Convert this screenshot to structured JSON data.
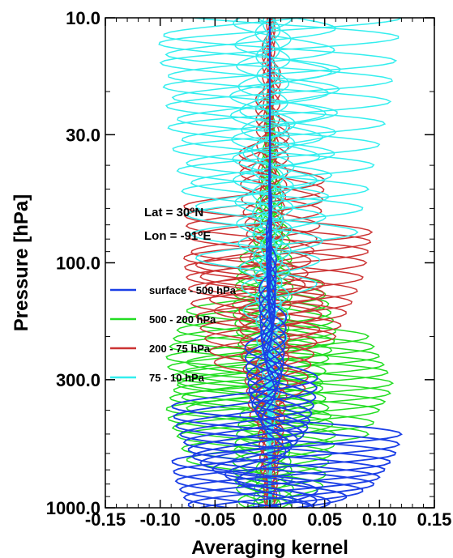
{
  "chart_data": {
    "type": "line",
    "xlabel": "Averaging kernel",
    "ylabel": "Pressure [hPa]",
    "xlim": [
      -0.15,
      0.15
    ],
    "ylim": [
      1000.0,
      10.0
    ],
    "y_scale": "log",
    "x_ticks": [
      "-0.15",
      "-0.10",
      "-0.05",
      "0.00",
      "0.05",
      "0.10",
      "0.15"
    ],
    "y_ticks": [
      "10.0",
      "30.0",
      "100.0",
      "300.0",
      "1000.0"
    ],
    "y_tick_values": [
      10,
      30,
      100,
      300,
      1000
    ],
    "grid": false,
    "annotations": [
      {
        "text_html": "Lat = 30<tspan baseline-shift='super' font-size='10'>o</tspan>N",
        "text": "Lat = 30oN"
      },
      {
        "text_html": "Lon = -91<tspan baseline-shift='super' font-size='10'>o</tspan>E",
        "text": "Lon = -91oE"
      }
    ],
    "legend_position": "center-left",
    "series": [
      {
        "name": "surface - 500 hPa",
        "color": "#1a3ee6",
        "peak_pressures": [
          1000,
          950,
          900,
          850,
          800,
          750,
          700,
          650,
          600,
          550,
          500
        ],
        "peak_values": [
          0.04,
          0.055,
          0.07,
          0.085,
          0.095,
          0.1,
          0.105,
          0.11,
          0.115,
          0.118,
          0.12
        ]
      },
      {
        "name": "500 - 200 hPa",
        "color": "#22dd22",
        "peak_pressures": [
          500,
          450,
          400,
          370,
          340,
          310,
          280,
          260,
          240,
          220,
          200
        ],
        "peak_values": [
          0.09,
          0.095,
          0.1,
          0.105,
          0.11,
          0.112,
          0.108,
          0.104,
          0.1,
          0.095,
          0.09
        ]
      },
      {
        "name": "200 - 75 hPa",
        "color": "#cc3333",
        "peak_pressures": [
          200,
          180,
          160,
          145,
          130,
          115,
          100,
          90,
          82,
          75
        ],
        "peak_values": [
          0.06,
          0.065,
          0.07,
          0.075,
          0.08,
          0.085,
          0.088,
          0.09,
          0.092,
          0.093
        ]
      },
      {
        "name": "75 - 10 hPa",
        "color": "#33eeee",
        "peak_pressures": [
          75,
          60,
          50,
          40,
          33,
          27,
          22,
          18,
          15,
          12,
          10
        ],
        "peak_values": [
          0.08,
          0.085,
          0.09,
          0.095,
          0.1,
          0.105,
          0.11,
          0.112,
          0.115,
          0.118,
          0.12
        ]
      }
    ]
  }
}
